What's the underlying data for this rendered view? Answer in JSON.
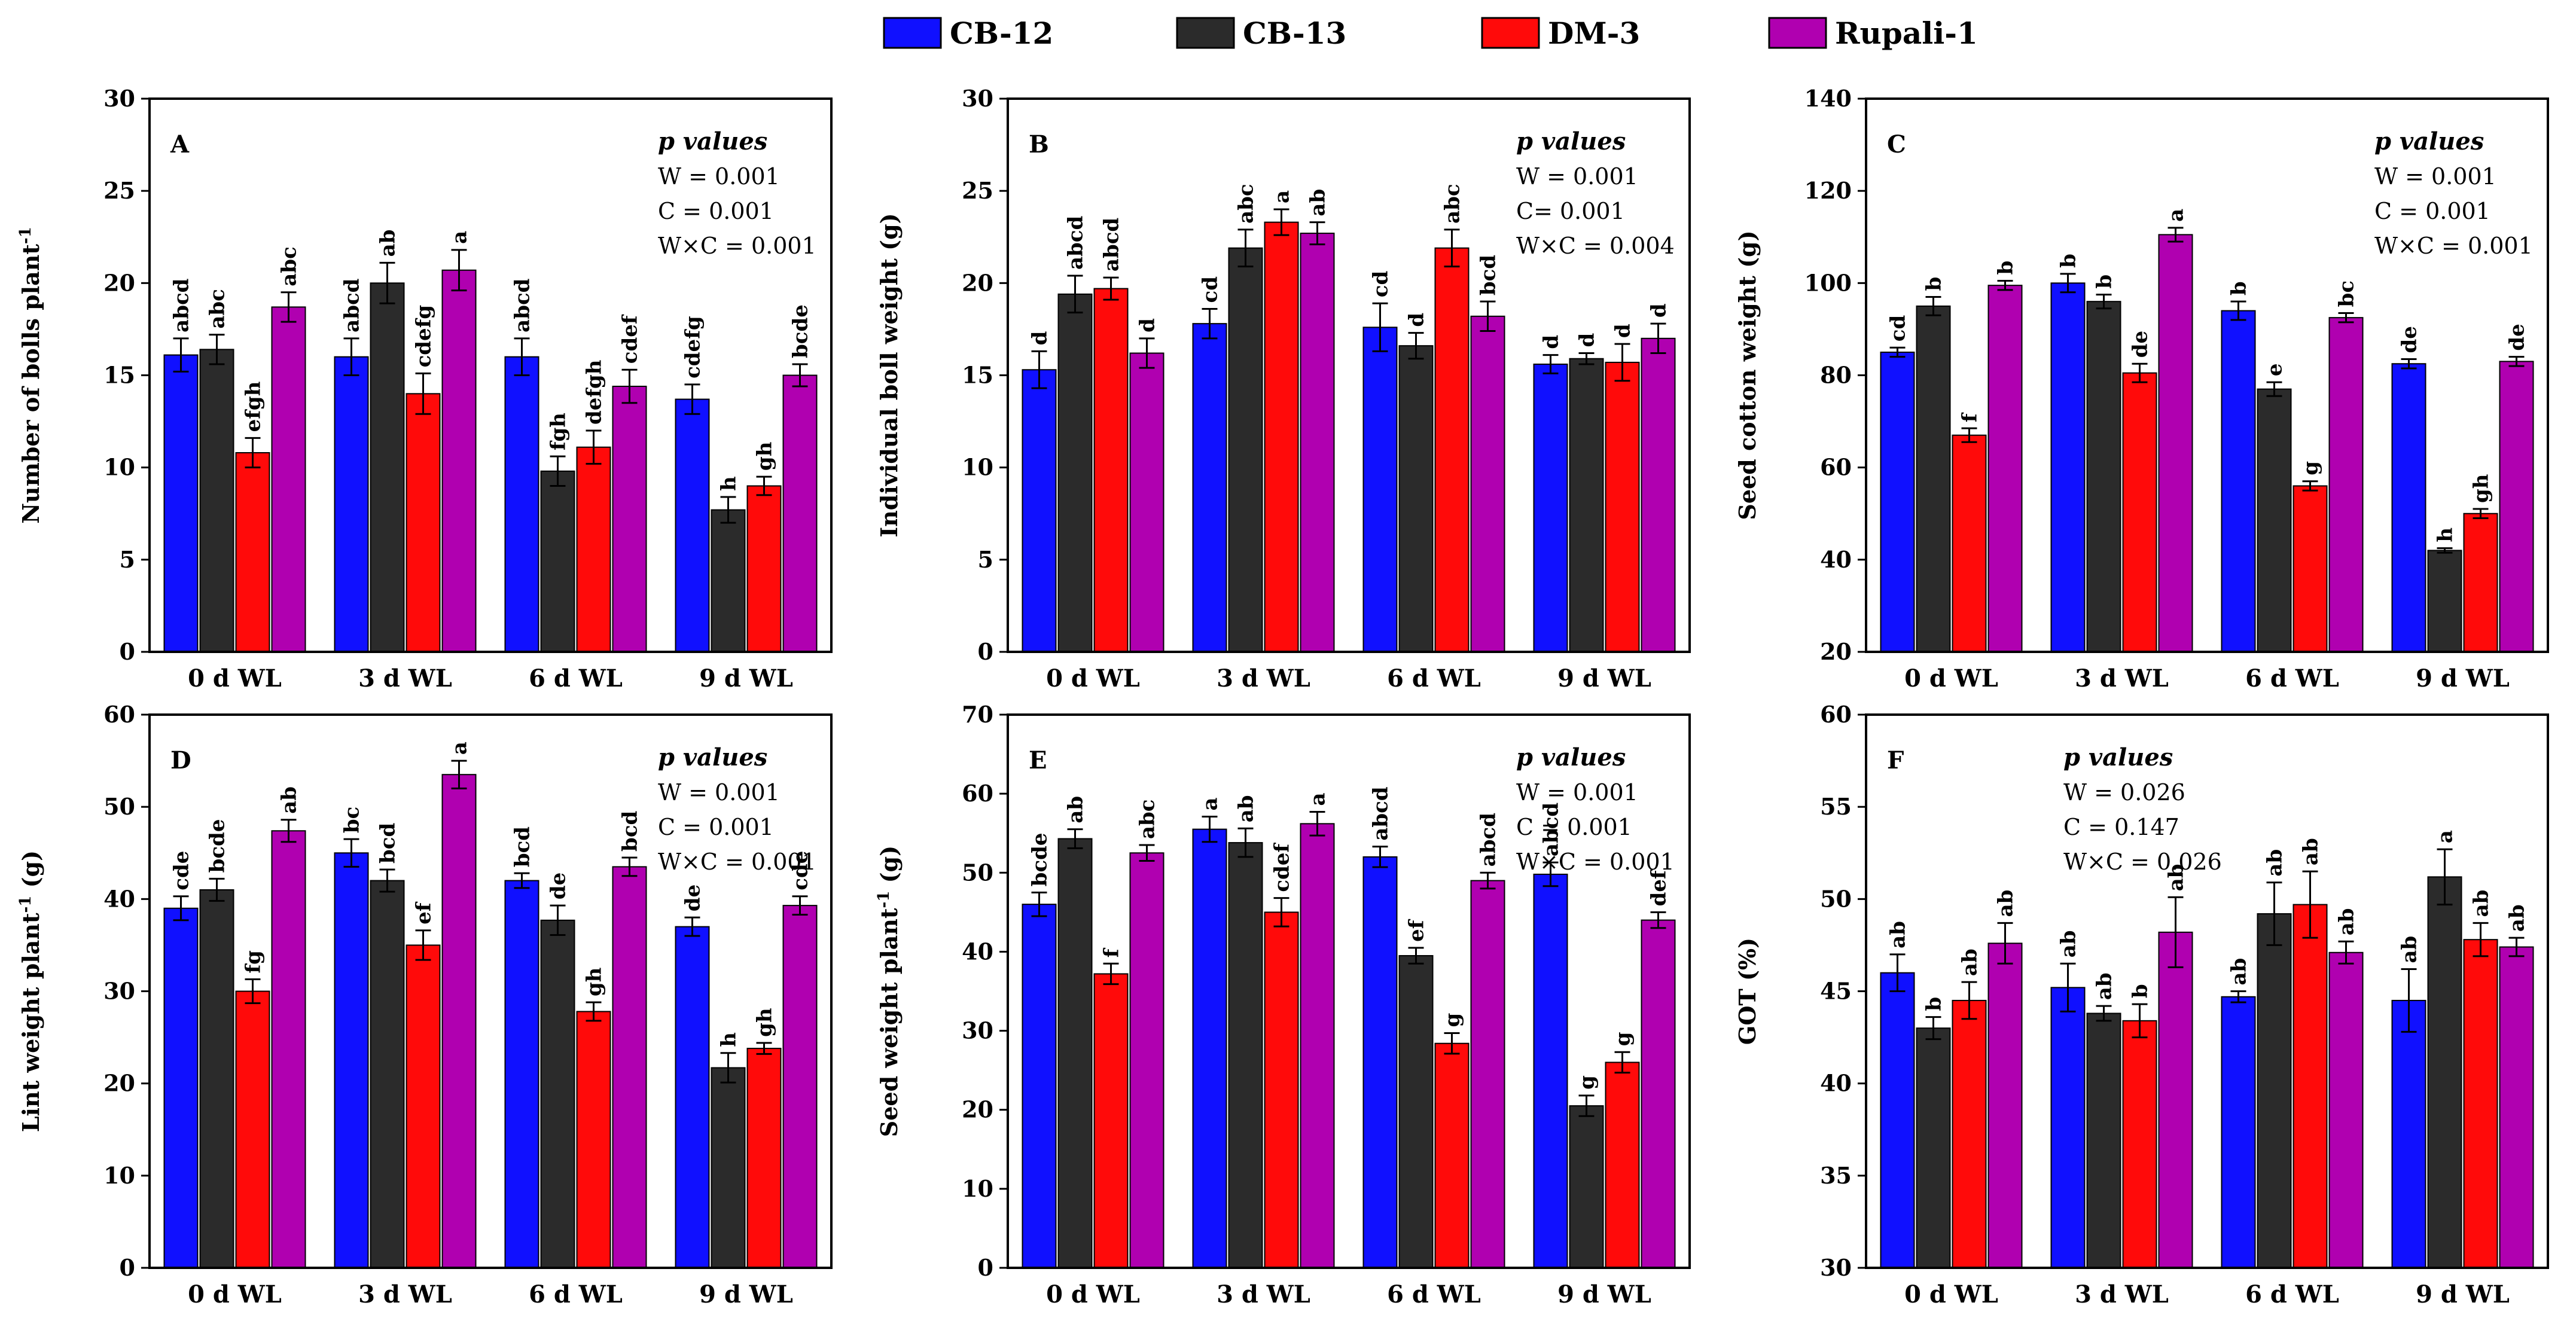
{
  "legend": [
    {
      "name": "CB-12",
      "color": "#1010ff"
    },
    {
      "name": "CB-13",
      "color": "#2b2b2b"
    },
    {
      "name": "DM-3",
      "color": "#ff0a0a"
    },
    {
      "name": "Rupali-1",
      "color": "#b000b0"
    }
  ],
  "chart_data": [
    {
      "type": "bar",
      "letter": "A",
      "ylabel": "Number of bolls plant",
      "ylabel_sup": "-1",
      "ylim": [
        0,
        30
      ],
      "yticks": [
        0,
        5,
        10,
        15,
        20,
        25,
        30
      ],
      "categories": [
        "0 d WL",
        "3 d WL",
        "6 d WL",
        "9 d WL"
      ],
      "stats_title": "p values",
      "stats": [
        "W = 0.001",
        "C = 0.001",
        "W×C = 0.001"
      ],
      "stats_pos": "top-right",
      "series": [
        {
          "name": "CB-12",
          "values": [
            16.1,
            16.0,
            16.0,
            13.7
          ],
          "errors": [
            0.9,
            1.0,
            1.0,
            0.8
          ],
          "labels": [
            "abcd",
            "abcd",
            "abcd",
            "cdefg"
          ]
        },
        {
          "name": "CB-13",
          "values": [
            16.4,
            20.0,
            9.8,
            7.7
          ],
          "errors": [
            0.8,
            1.1,
            0.8,
            0.7
          ],
          "labels": [
            "abc",
            "ab",
            "fgh",
            "h"
          ]
        },
        {
          "name": "DM-3",
          "values": [
            10.8,
            14.0,
            11.1,
            9.0
          ],
          "errors": [
            0.8,
            1.1,
            0.9,
            0.5
          ],
          "labels": [
            "efgh",
            "cdefg",
            "defgh",
            "gh"
          ]
        },
        {
          "name": "Rupali-1",
          "values": [
            18.7,
            20.7,
            14.4,
            15.0
          ],
          "errors": [
            0.8,
            1.1,
            0.9,
            0.6
          ],
          "labels": [
            "abc",
            "a",
            "cdef",
            "bcde"
          ]
        }
      ]
    },
    {
      "type": "bar",
      "letter": "B",
      "ylabel": "Individual boll weight (g)",
      "ylabel_sup": "",
      "ylim": [
        0,
        30
      ],
      "yticks": [
        0,
        5,
        10,
        15,
        20,
        25,
        30
      ],
      "categories": [
        "0 d WL",
        "3 d WL",
        "6 d WL",
        "9 d WL"
      ],
      "stats_title": "p values",
      "stats": [
        "W = 0.001",
        "C= 0.001",
        "W×C = 0.004"
      ],
      "stats_pos": "top-right",
      "series": [
        {
          "name": "CB-12",
          "values": [
            15.3,
            17.8,
            17.6,
            15.6
          ],
          "errors": [
            1.0,
            0.8,
            1.3,
            0.5
          ],
          "labels": [
            "d",
            "cd",
            "cd",
            "d"
          ]
        },
        {
          "name": "CB-13",
          "values": [
            19.4,
            21.9,
            16.6,
            15.9
          ],
          "errors": [
            1.0,
            1.0,
            0.7,
            0.3
          ],
          "labels": [
            "abcd",
            "abc",
            "d",
            "d"
          ]
        },
        {
          "name": "DM-3",
          "values": [
            19.7,
            23.3,
            21.9,
            15.7
          ],
          "errors": [
            0.6,
            0.7,
            1.0,
            1.0
          ],
          "labels": [
            "abcd",
            "a",
            "abc",
            "d"
          ]
        },
        {
          "name": "Rupali-1",
          "values": [
            16.2,
            22.7,
            18.2,
            17.0
          ],
          "errors": [
            0.8,
            0.6,
            0.8,
            0.8
          ],
          "labels": [
            "d",
            "ab",
            "bcd",
            "d"
          ]
        }
      ]
    },
    {
      "type": "bar",
      "letter": "C",
      "ylabel": "Seed cotton weight (g)",
      "ylabel_sup": "",
      "ylim": [
        20,
        140
      ],
      "yticks": [
        20,
        40,
        60,
        80,
        100,
        120,
        140
      ],
      "categories": [
        "0 d WL",
        "3 d WL",
        "6 d WL",
        "9 d WL"
      ],
      "stats_title": "p values",
      "stats": [
        "W = 0.001",
        "C = 0.001",
        "W×C = 0.001"
      ],
      "stats_pos": "top-right",
      "series": [
        {
          "name": "CB-12",
          "values": [
            85.0,
            100.0,
            94.0,
            82.5
          ],
          "errors": [
            1.0,
            2.0,
            2.0,
            1.0
          ],
          "labels": [
            "cd",
            "b",
            "b",
            "de"
          ]
        },
        {
          "name": "CB-13",
          "values": [
            95.0,
            96.0,
            77.0,
            42.0
          ],
          "errors": [
            2.0,
            1.5,
            1.5,
            0.5
          ],
          "labels": [
            "b",
            "b",
            "e",
            "h"
          ]
        },
        {
          "name": "DM-3",
          "values": [
            67.0,
            80.5,
            56.0,
            50.0
          ],
          "errors": [
            1.5,
            2.0,
            1.0,
            1.0
          ],
          "labels": [
            "f",
            "de",
            "g",
            "gh"
          ]
        },
        {
          "name": "Rupali-1",
          "values": [
            99.5,
            110.5,
            92.5,
            83.0
          ],
          "errors": [
            1.0,
            1.5,
            1.0,
            1.0
          ],
          "labels": [
            "b",
            "a",
            "bc",
            "de"
          ]
        }
      ]
    },
    {
      "type": "bar",
      "letter": "D",
      "ylabel": "Lint weight plant",
      "ylabel_sup": "-1",
      "ylabel_after": " (g)",
      "ylim": [
        0,
        60
      ],
      "yticks": [
        0,
        10,
        20,
        30,
        40,
        50,
        60
      ],
      "categories": [
        "0 d WL",
        "3 d WL",
        "6 d WL",
        "9 d WL"
      ],
      "stats_title": "p values",
      "stats": [
        "W = 0.001",
        "C = 0.001",
        "W×C = 0.001"
      ],
      "stats_pos": "top-right",
      "series": [
        {
          "name": "CB-12",
          "values": [
            39.0,
            45.0,
            42.0,
            37.0
          ],
          "errors": [
            1.3,
            1.5,
            0.8,
            1.0
          ],
          "labels": [
            "cde",
            "bc",
            "bcd",
            "de"
          ]
        },
        {
          "name": "CB-13",
          "values": [
            41.0,
            42.0,
            37.7,
            21.7
          ],
          "errors": [
            1.2,
            1.2,
            1.6,
            1.6
          ],
          "labels": [
            "bcde",
            "bcd",
            "de",
            "h"
          ]
        },
        {
          "name": "DM-3",
          "values": [
            30.0,
            35.0,
            27.8,
            23.8
          ],
          "errors": [
            1.3,
            1.6,
            1.0,
            0.6
          ],
          "labels": [
            "fg",
            "ef",
            "gh",
            "gh"
          ]
        },
        {
          "name": "Rupali-1",
          "values": [
            47.4,
            53.5,
            43.5,
            39.3
          ],
          "errors": [
            1.2,
            1.5,
            1.0,
            1.0
          ],
          "labels": [
            "ab",
            "a",
            "bcd",
            "cde"
          ]
        }
      ]
    },
    {
      "type": "bar",
      "letter": "E",
      "ylabel": "Seed weight plant",
      "ylabel_sup": "-1",
      "ylabel_after": " (g)",
      "ylim": [
        0,
        70
      ],
      "yticks": [
        0,
        10,
        20,
        30,
        40,
        50,
        60,
        70
      ],
      "categories": [
        "0 d WL",
        "3 d WL",
        "6 d WL",
        "9 d WL"
      ],
      "stats_title": "p values",
      "stats": [
        "W = 0.001",
        "C = 0.001",
        "W×C = 0.001"
      ],
      "stats_pos": "top-right",
      "series": [
        {
          "name": "CB-12",
          "values": [
            46.0,
            55.5,
            52.0,
            49.8
          ],
          "errors": [
            1.5,
            1.6,
            1.3,
            1.5
          ],
          "labels": [
            "bcde",
            "a",
            "abcd",
            "abcd"
          ]
        },
        {
          "name": "CB-13",
          "values": [
            54.3,
            53.8,
            39.5,
            20.5
          ],
          "errors": [
            1.2,
            1.8,
            1.0,
            1.3
          ],
          "labels": [
            "ab",
            "ab",
            "ef",
            "g"
          ]
        },
        {
          "name": "DM-3",
          "values": [
            37.2,
            45.0,
            28.4,
            26.0
          ],
          "errors": [
            1.3,
            1.8,
            1.3,
            1.3
          ],
          "labels": [
            "f",
            "cdef",
            "g",
            "g"
          ]
        },
        {
          "name": "Rupali-1",
          "values": [
            52.5,
            56.2,
            49.0,
            44.0
          ],
          "errors": [
            1.0,
            1.5,
            1.0,
            1.0
          ],
          "labels": [
            "abc",
            "a",
            "abcd",
            "def"
          ]
        }
      ]
    },
    {
      "type": "bar",
      "letter": "F",
      "ylabel": "GOT (%)",
      "ylabel_sup": "",
      "ylim": [
        30,
        60
      ],
      "yticks": [
        30,
        35,
        40,
        45,
        50,
        55,
        60
      ],
      "categories": [
        "0 d WL",
        "3 d WL",
        "6 d WL",
        "9 d WL"
      ],
      "stats_title": "p values",
      "stats": [
        "W = 0.026",
        "C = 0.147",
        "W×C = 0.026"
      ],
      "stats_pos": "top-left",
      "series": [
        {
          "name": "CB-12",
          "values": [
            46.0,
            45.2,
            44.7,
            44.5
          ],
          "errors": [
            1.0,
            1.3,
            0.3,
            1.7
          ],
          "labels": [
            "ab",
            "ab",
            "ab",
            "ab"
          ]
        },
        {
          "name": "CB-13",
          "values": [
            43.0,
            43.8,
            49.2,
            51.2
          ],
          "errors": [
            0.6,
            0.4,
            1.7,
            1.5
          ],
          "labels": [
            "b",
            "ab",
            "ab",
            "a"
          ]
        },
        {
          "name": "DM-3",
          "values": [
            44.5,
            43.4,
            49.7,
            47.8
          ],
          "errors": [
            1.0,
            0.9,
            1.8,
            0.9
          ],
          "labels": [
            "ab",
            "b",
            "ab",
            "ab"
          ]
        },
        {
          "name": "Rupali-1",
          "values": [
            47.6,
            48.2,
            47.1,
            47.4
          ],
          "errors": [
            1.1,
            1.9,
            0.6,
            0.5
          ],
          "labels": [
            "ab",
            "ab",
            "ab",
            "ab"
          ]
        }
      ]
    }
  ]
}
